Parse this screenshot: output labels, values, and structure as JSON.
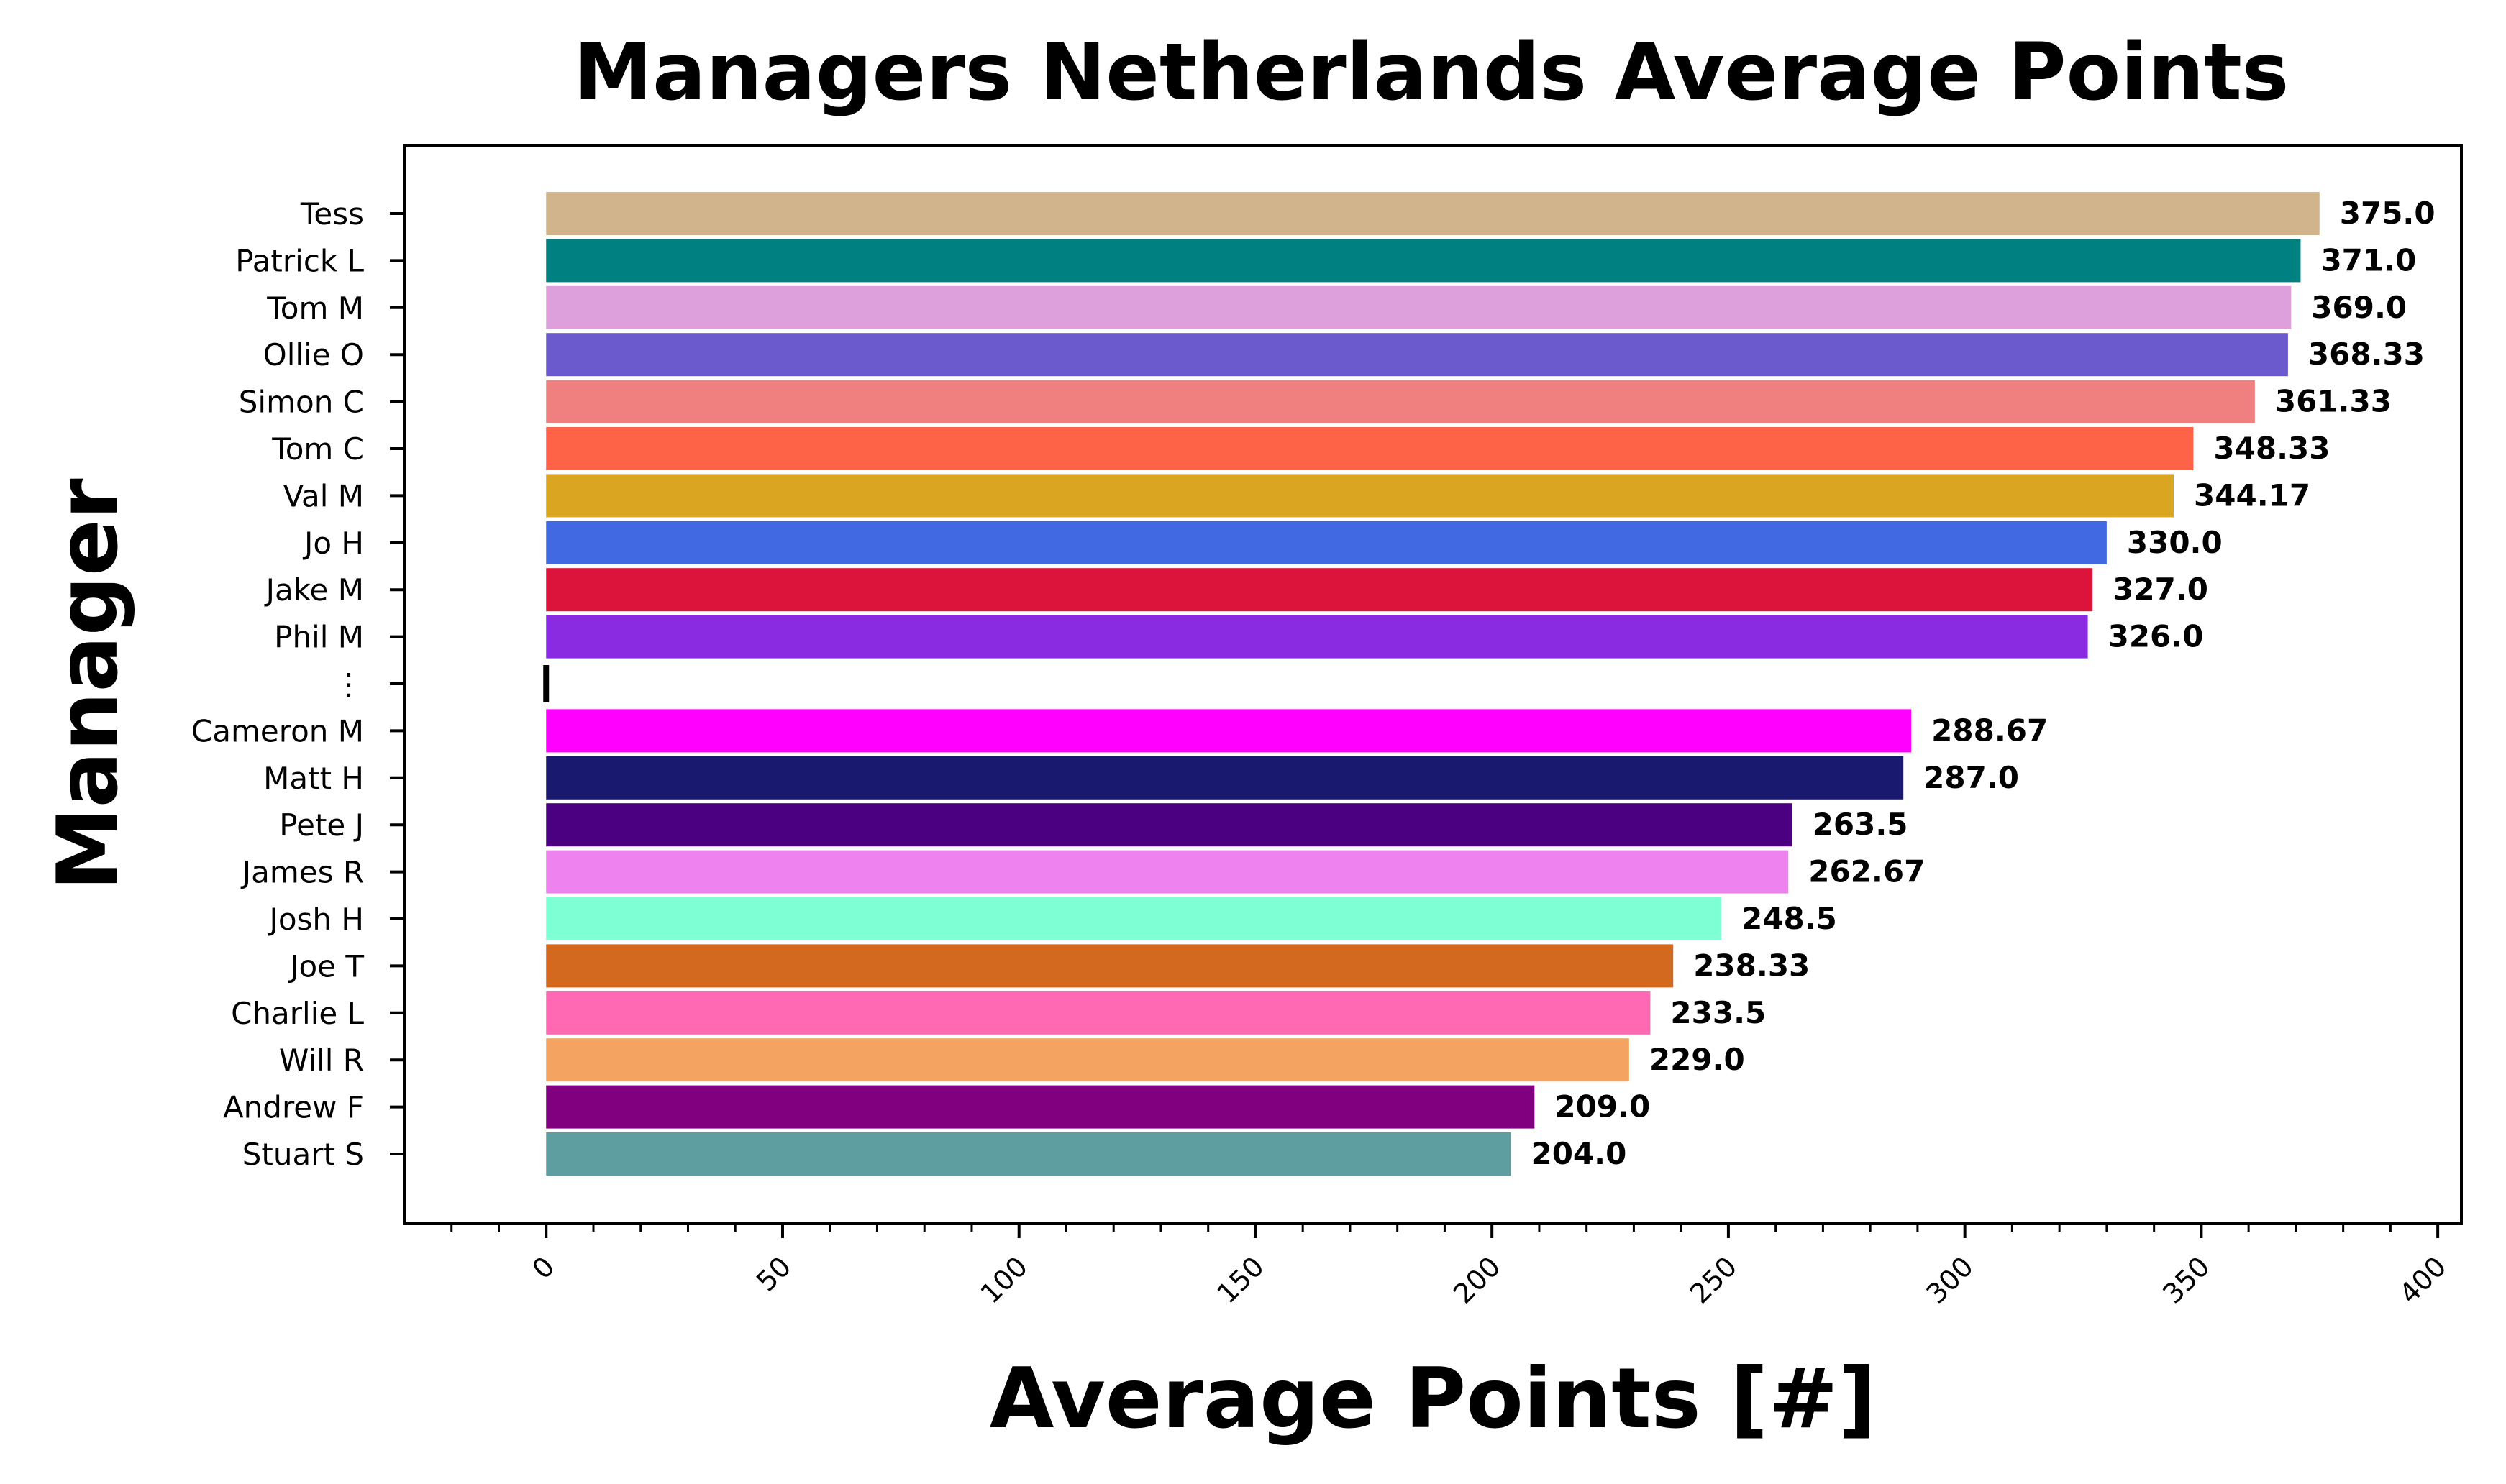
{
  "chart_data": {
    "type": "bar",
    "orientation": "horizontal",
    "title": "Managers Netherlands Average Points",
    "xlabel": "Average Points [#]",
    "ylabel": "Manager",
    "xlim": [
      -30,
      405
    ],
    "xticks": [
      0,
      50,
      100,
      150,
      200,
      250,
      300,
      350,
      400
    ],
    "categories": [
      "Tess",
      "Patrick L",
      "Tom M",
      "Ollie O",
      "Simon C",
      "Tom C",
      "Val M",
      "Jo H",
      "Jake M",
      "Phil M",
      "⋮",
      "Cameron M",
      "Matt H",
      "Pete J",
      "James R",
      "Josh H",
      "Joe T",
      "Charlie L",
      "Will R",
      "Andrew F",
      "Stuart S"
    ],
    "values": [
      375.0,
      371.0,
      369.0,
      368.33,
      361.33,
      348.33,
      344.17,
      330.0,
      327.0,
      326.0,
      null,
      288.67,
      287.0,
      263.5,
      262.67,
      248.5,
      238.33,
      233.5,
      229.0,
      209.0,
      204.0
    ],
    "value_labels": [
      "375.0",
      "371.0",
      "369.0",
      "368.33",
      "361.33",
      "348.33",
      "344.17",
      "330.0",
      "327.0",
      "326.0",
      "",
      "288.67",
      "287.0",
      "263.5",
      "262.67",
      "248.5",
      "238.33",
      "233.5",
      "229.0",
      "209.0",
      "204.0"
    ],
    "colors": [
      "#d2b48c",
      "#008080",
      "#dda0dd",
      "#6a5acd",
      "#f08080",
      "#ff6347",
      "#daa520",
      "#4169e1",
      "#dc143c",
      "#8a2be2",
      "#000000",
      "#ff00ff",
      "#191970",
      "#4b0082",
      "#ee82ee",
      "#7fffd4",
      "#d2691e",
      "#ff69b4",
      "#f4a460",
      "#800080",
      "#5f9ea0"
    ],
    "grid": false,
    "legend": false
  }
}
